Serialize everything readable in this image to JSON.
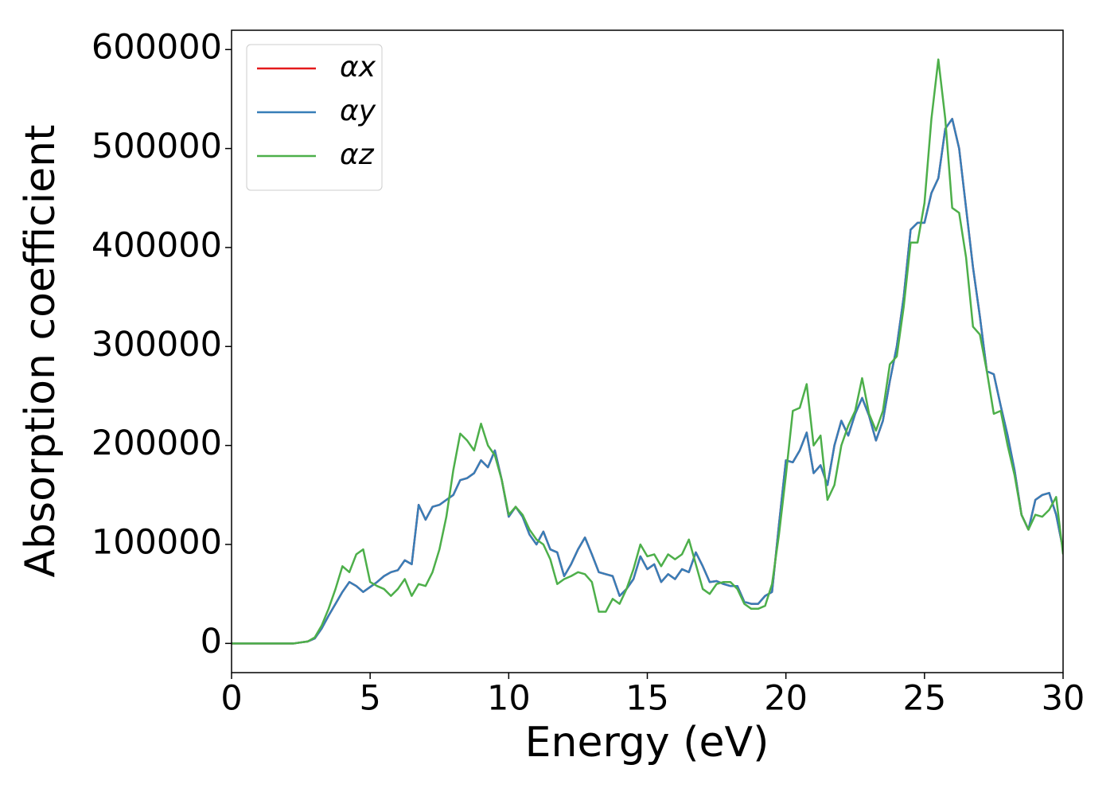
{
  "chart_data": {
    "type": "line",
    "xlabel": "Energy (eV)",
    "ylabel": "Absorption coefficient",
    "x": [
      0,
      0.25,
      0.5,
      0.75,
      1,
      1.25,
      1.5,
      1.75,
      2,
      2.25,
      2.5,
      2.75,
      3,
      3.25,
      3.5,
      3.75,
      4,
      4.25,
      4.5,
      4.75,
      5,
      5.25,
      5.5,
      5.75,
      6,
      6.25,
      6.5,
      6.75,
      7,
      7.25,
      7.5,
      7.75,
      8,
      8.25,
      8.5,
      8.75,
      9,
      9.25,
      9.5,
      9.75,
      10,
      10.25,
      10.5,
      10.75,
      11,
      11.25,
      11.5,
      11.75,
      12,
      12.25,
      12.5,
      12.75,
      13,
      13.25,
      13.5,
      13.75,
      14,
      14.25,
      14.5,
      14.75,
      15,
      15.25,
      15.5,
      15.75,
      16,
      16.25,
      16.5,
      16.75,
      17,
      17.25,
      17.5,
      17.75,
      18,
      18.25,
      18.5,
      18.75,
      19,
      19.25,
      19.5,
      19.75,
      20,
      20.25,
      20.5,
      20.75,
      21,
      21.25,
      21.5,
      21.75,
      22,
      22.25,
      22.5,
      22.75,
      23,
      23.25,
      23.5,
      23.75,
      24,
      24.25,
      24.5,
      24.75,
      25,
      25.25,
      25.5,
      25.75,
      26,
      26.25,
      26.5,
      26.75,
      27,
      27.25,
      27.5,
      27.75,
      28,
      28.25,
      28.5,
      28.75,
      29,
      29.25,
      29.5,
      29.75,
      30
    ],
    "series": [
      {
        "name": "αx",
        "color": "#e41a1c",
        "values": [
          0,
          0,
          0,
          0,
          0,
          0,
          0,
          0,
          0,
          0,
          1000,
          2000,
          5000,
          15000,
          28000,
          40000,
          52000,
          62000,
          58000,
          52000,
          57000,
          62000,
          68000,
          72000,
          74000,
          84000,
          80000,
          140000,
          125000,
          138000,
          140000,
          145000,
          150000,
          165000,
          167000,
          172000,
          185000,
          178000,
          195000,
          165000,
          128000,
          138000,
          128000,
          110000,
          100000,
          113000,
          95000,
          92000,
          68000,
          80000,
          95000,
          107000,
          90000,
          72000,
          70000,
          68000,
          48000,
          55000,
          65000,
          88000,
          75000,
          80000,
          62000,
          70000,
          65000,
          75000,
          72000,
          92000,
          78000,
          62000,
          63000,
          60000,
          58000,
          58000,
          42000,
          40000,
          40000,
          48000,
          52000,
          120000,
          185000,
          183000,
          195000,
          213000,
          172000,
          180000,
          160000,
          200000,
          225000,
          210000,
          232000,
          248000,
          230000,
          205000,
          225000,
          265000,
          300000,
          350000,
          418000,
          425000,
          425000,
          455000,
          470000,
          520000,
          530000,
          500000,
          440000,
          380000,
          330000,
          275000,
          272000,
          240000,
          210000,
          175000,
          130000,
          115000,
          145000,
          150000,
          152000,
          130000,
          95000
        ]
      },
      {
        "name": "αy",
        "color": "#377eb8",
        "values": [
          0,
          0,
          0,
          0,
          0,
          0,
          0,
          0,
          0,
          0,
          1000,
          2000,
          5000,
          15000,
          28000,
          40000,
          52000,
          62000,
          58000,
          52000,
          57000,
          62000,
          68000,
          72000,
          74000,
          84000,
          80000,
          140000,
          125000,
          138000,
          140000,
          145000,
          150000,
          165000,
          167000,
          172000,
          185000,
          178000,
          195000,
          165000,
          128000,
          138000,
          128000,
          110000,
          100000,
          113000,
          95000,
          92000,
          68000,
          80000,
          95000,
          107000,
          90000,
          72000,
          70000,
          68000,
          48000,
          55000,
          65000,
          88000,
          75000,
          80000,
          62000,
          70000,
          65000,
          75000,
          72000,
          92000,
          78000,
          62000,
          63000,
          60000,
          58000,
          58000,
          42000,
          40000,
          40000,
          48000,
          52000,
          120000,
          185000,
          183000,
          195000,
          213000,
          172000,
          180000,
          160000,
          200000,
          225000,
          210000,
          232000,
          248000,
          230000,
          205000,
          225000,
          265000,
          300000,
          350000,
          418000,
          425000,
          425000,
          455000,
          470000,
          520000,
          530000,
          500000,
          440000,
          380000,
          330000,
          275000,
          272000,
          240000,
          210000,
          175000,
          130000,
          115000,
          145000,
          150000,
          152000,
          130000,
          95000
        ]
      },
      {
        "name": "αz",
        "color": "#4daf4a",
        "values": [
          0,
          0,
          0,
          0,
          0,
          0,
          0,
          0,
          0,
          0,
          1000,
          2000,
          6000,
          18000,
          35000,
          55000,
          78000,
          72000,
          90000,
          95000,
          62000,
          58000,
          55000,
          48000,
          55000,
          65000,
          48000,
          60000,
          58000,
          72000,
          95000,
          128000,
          175000,
          212000,
          205000,
          195000,
          222000,
          200000,
          190000,
          165000,
          130000,
          138000,
          130000,
          115000,
          105000,
          100000,
          85000,
          60000,
          65000,
          68000,
          72000,
          70000,
          62000,
          32000,
          32000,
          45000,
          40000,
          55000,
          75000,
          100000,
          88000,
          90000,
          78000,
          90000,
          85000,
          90000,
          105000,
          80000,
          55000,
          50000,
          60000,
          62000,
          62000,
          55000,
          40000,
          35000,
          35000,
          38000,
          60000,
          110000,
          170000,
          235000,
          238000,
          262000,
          200000,
          210000,
          145000,
          160000,
          200000,
          220000,
          235000,
          268000,
          232000,
          215000,
          235000,
          282000,
          290000,
          340000,
          405000,
          405000,
          445000,
          530000,
          590000,
          530000,
          440000,
          435000,
          390000,
          320000,
          312000,
          275000,
          232000,
          235000,
          200000,
          170000,
          130000,
          115000,
          130000,
          128000,
          135000,
          148000,
          90000
        ]
      }
    ],
    "xlim": [
      0,
      30
    ],
    "xticks": [
      0,
      5,
      10,
      15,
      20,
      25,
      30
    ],
    "ylim": [
      -29500,
      619500
    ],
    "yticks": [
      0,
      100000,
      200000,
      300000,
      400000,
      500000,
      600000
    ],
    "legend": "upper left",
    "grid": false
  }
}
